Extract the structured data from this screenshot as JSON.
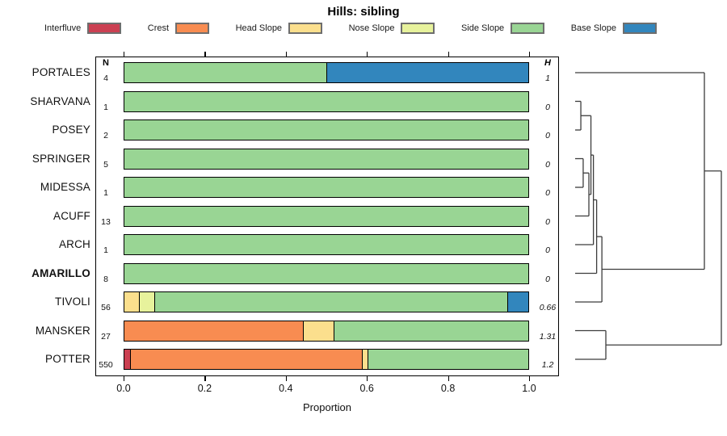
{
  "title": "Hills: sibling",
  "legend": [
    {
      "label": "Interfluve",
      "color": "#CB4052"
    },
    {
      "label": "Crest",
      "color": "#F88C51"
    },
    {
      "label": "Head Slope",
      "color": "#FBDF8D"
    },
    {
      "label": "Nose Slope",
      "color": "#E7F29C"
    },
    {
      "label": "Side Slope",
      "color": "#99D594"
    },
    {
      "label": "Base Slope",
      "color": "#3286BD"
    }
  ],
  "columns": {
    "n_header": "N",
    "h_header": "H"
  },
  "axis": {
    "label": "Proportion",
    "ticks": [
      {
        "label": "0.0",
        "value": 0.0
      },
      {
        "label": "0.2",
        "value": 0.2
      },
      {
        "label": "0.4",
        "value": 0.4
      },
      {
        "label": "0.6",
        "value": 0.6
      },
      {
        "label": "0.8",
        "value": 0.8
      },
      {
        "label": "1.0",
        "value": 1.0
      }
    ]
  },
  "chart_data": {
    "type": "bar",
    "orientation": "horizontal-stacked",
    "title": "Hills: sibling",
    "xlabel": "Proportion",
    "xlim": [
      0,
      1
    ],
    "categories": [
      "Interfluve",
      "Crest",
      "Head Slope",
      "Nose Slope",
      "Side Slope",
      "Base Slope"
    ],
    "rows": [
      {
        "name": "PORTALES",
        "n": "4",
        "h": "1",
        "bold": false,
        "values": [
          0,
          0,
          0,
          0,
          0.5,
          0.5
        ]
      },
      {
        "name": "SHARVANA",
        "n": "1",
        "h": "0",
        "bold": false,
        "values": [
          0,
          0,
          0,
          0,
          1,
          0
        ]
      },
      {
        "name": "POSEY",
        "n": "2",
        "h": "0",
        "bold": false,
        "values": [
          0,
          0,
          0,
          0,
          1,
          0
        ]
      },
      {
        "name": "SPRINGER",
        "n": "5",
        "h": "0",
        "bold": false,
        "values": [
          0,
          0,
          0,
          0,
          1,
          0
        ]
      },
      {
        "name": "MIDESSA",
        "n": "1",
        "h": "0",
        "bold": false,
        "values": [
          0,
          0,
          0,
          0,
          1,
          0
        ]
      },
      {
        "name": "ACUFF",
        "n": "13",
        "h": "0",
        "bold": false,
        "values": [
          0,
          0,
          0,
          0,
          1,
          0
        ]
      },
      {
        "name": "ARCH",
        "n": "1",
        "h": "0",
        "bold": false,
        "values": [
          0,
          0,
          0,
          0,
          1,
          0
        ]
      },
      {
        "name": "AMARILLO",
        "n": "8",
        "h": "0",
        "bold": true,
        "values": [
          0,
          0,
          0,
          0,
          1,
          0
        ]
      },
      {
        "name": "TIVOLI",
        "n": "56",
        "h": "0.66",
        "bold": false,
        "values": [
          0,
          0,
          0.036,
          0.036,
          0.878,
          0.05
        ]
      },
      {
        "name": "MANSKER",
        "n": "27",
        "h": "1.31",
        "bold": false,
        "values": [
          0,
          0.444,
          0.074,
          0,
          0.482,
          0
        ]
      },
      {
        "name": "POTTER",
        "n": "550",
        "h": "1.2",
        "bold": false,
        "values": [
          0.015,
          0.575,
          0.011,
          0,
          0.399,
          0
        ]
      }
    ]
  },
  "dendrogram": {
    "merges": [
      {
        "id": "n1",
        "a": "SHARVANA",
        "b": "POSEY",
        "h": 0.039
      },
      {
        "id": "n2",
        "a": "SPRINGER",
        "b": "MIDESSA",
        "h": 0.055
      },
      {
        "id": "n3",
        "a": "n2",
        "b": "ACUFF",
        "h": 0.094
      },
      {
        "id": "n4",
        "a": "n1",
        "b": "n3",
        "h": 0.108
      },
      {
        "id": "n5",
        "a": "n4",
        "b": "ARCH",
        "h": 0.125
      },
      {
        "id": "n6",
        "a": "n5",
        "b": "AMARILLO",
        "h": 0.147
      },
      {
        "id": "n7",
        "a": "n6",
        "b": "TIVOLI",
        "h": 0.183
      },
      {
        "id": "n8",
        "a": "PORTALES",
        "b": "n7",
        "h": 0.884
      },
      {
        "id": "n9",
        "a": "MANSKER",
        "b": "POTTER",
        "h": 0.21
      },
      {
        "id": "n10",
        "a": "n8",
        "b": "n9",
        "h": 1.0
      }
    ]
  }
}
